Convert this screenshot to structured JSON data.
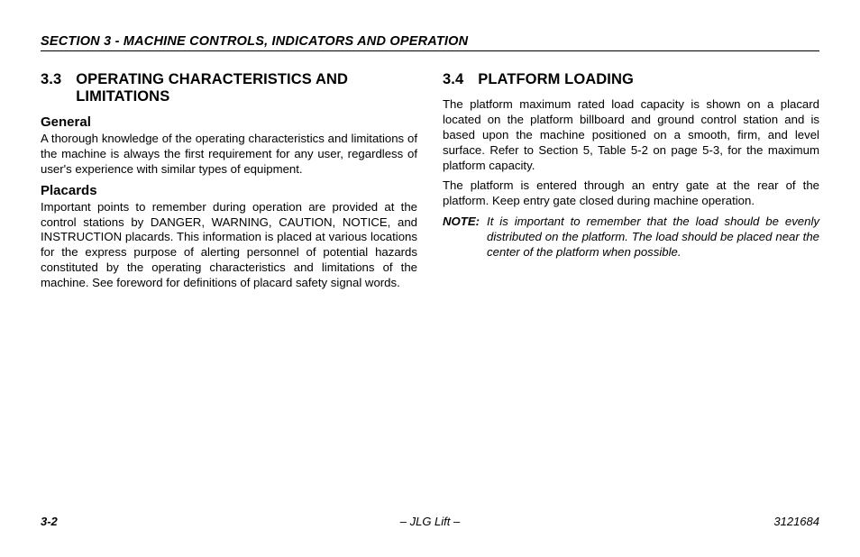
{
  "header": "SECTION 3 - MACHINE CONTROLS, INDICATORS AND OPERATION",
  "left": {
    "h1_num": "3.3",
    "h1_text": "OPERATING CHARACTERISTICS AND LIMITATIONS",
    "h2a": "General",
    "p1": "A thorough knowledge of the operating characteristics and limitations of the machine is always the first requirement for any user, regardless of user's experience with similar types of equipment.",
    "h2b": "Placards",
    "p2": "Important points to remember during operation are provided at the control stations by DANGER, WARNING, CAUTION, NOTICE, and INSTRUCTION placards. This information is placed at various locations for the express purpose of alerting personnel of potential hazards constituted by the operating characteristics and limitations of the machine. See foreword for definitions of placard safety signal words."
  },
  "right": {
    "h1_num": "3.4",
    "h1_text": "PLATFORM LOADING",
    "p1": "The platform maximum rated load capacity is shown on a placard located on the platform billboard and ground control station and is based upon the machine positioned on a smooth, firm, and level surface. Refer to Section 5, Table 5-2 on page 5-3, for the maximum platform capacity.",
    "p2": "The platform is entered through an entry gate at the rear of the platform. Keep entry gate closed during machine operation.",
    "note_label": "NOTE:",
    "note_body": "It is important to remember that the load should be evenly distributed on the platform. The load should be placed near the center of the platform when possible."
  },
  "footer": {
    "page": "3-2",
    "center": "– JLG Lift –",
    "docno": "3121684"
  }
}
